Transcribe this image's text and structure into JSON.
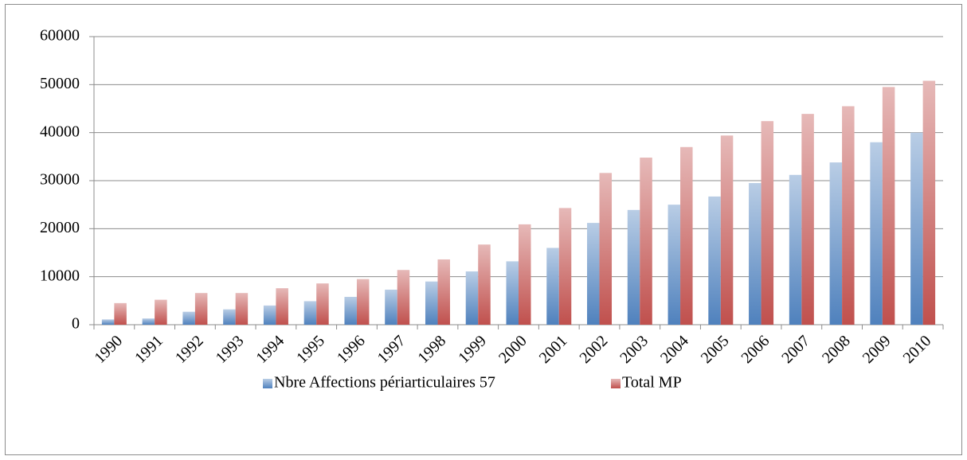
{
  "chart_data": {
    "type": "bar",
    "categories": [
      "1990",
      "1991",
      "1992",
      "1993",
      "1994",
      "1995",
      "1996",
      "1997",
      "1998",
      "1999",
      "2000",
      "2001",
      "2002",
      "2003",
      "2004",
      "2005",
      "2006",
      "2007",
      "2008",
      "2009",
      "2010"
    ],
    "series": [
      {
        "name": "Nbre Affections périarticulaires 57",
        "color": "#4f81bd",
        "values": [
          1100,
          1300,
          2700,
          3200,
          4000,
          4900,
          5800,
          7300,
          9000,
          11100,
          13200,
          16000,
          21200,
          23900,
          25000,
          26700,
          29500,
          31200,
          33800,
          38000,
          40000
        ]
      },
      {
        "name": "Total MP",
        "color": "#c0504d",
        "values": [
          4500,
          5200,
          6600,
          6600,
          7600,
          8600,
          9500,
          11400,
          13600,
          16700,
          20900,
          24300,
          31600,
          34800,
          37000,
          39400,
          42400,
          43900,
          45500,
          49500,
          50800
        ]
      }
    ],
    "ylim": [
      0,
      60000
    ],
    "yticks": [
      0,
      10000,
      20000,
      30000,
      40000,
      50000,
      60000
    ],
    "grid": true,
    "legend": "bottom"
  }
}
